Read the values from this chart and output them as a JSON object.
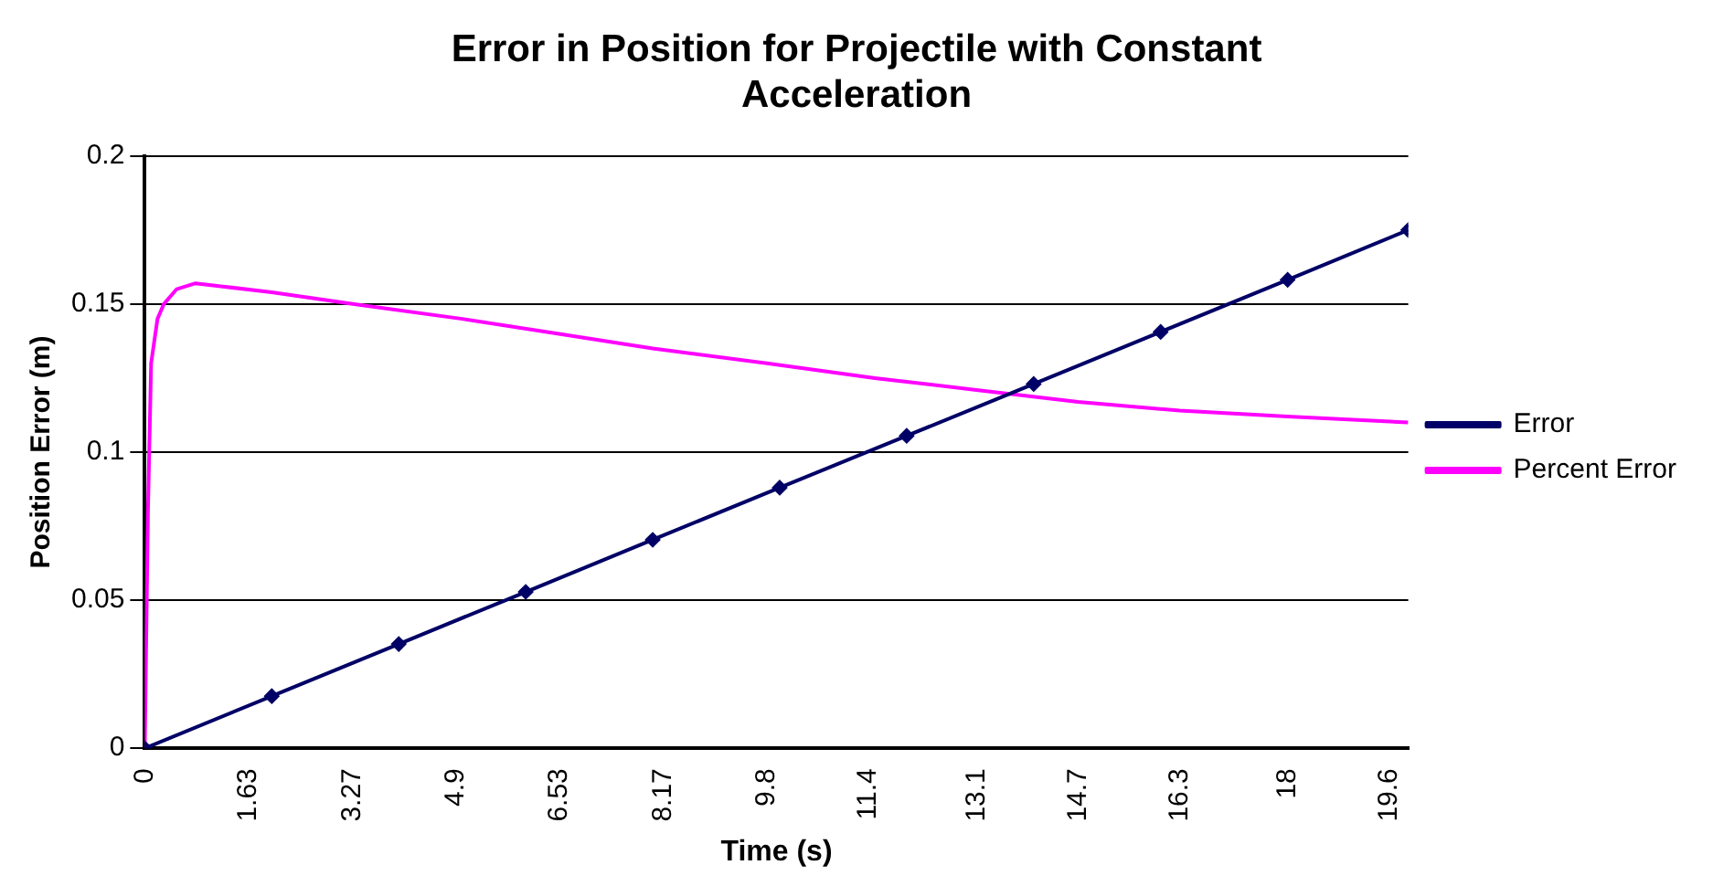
{
  "chart_data": {
    "type": "line",
    "title": "Error in Position for Projectile with Constant Acceleration",
    "xlabel": "Time (s)",
    "ylabel": "Position Error (m)",
    "xlim": [
      0,
      19.9
    ],
    "xticks": [
      0,
      1.63,
      3.27,
      4.9,
      6.53,
      8.17,
      9.8,
      11.4,
      13.1,
      14.7,
      16.3,
      18,
      19.6
    ],
    "ylim": [
      0,
      0.2
    ],
    "yticks": [
      0,
      0.05,
      0.1,
      0.15,
      0.2
    ],
    "grid": "y",
    "legend": "right",
    "series": [
      {
        "name": "Error",
        "color": "#000066",
        "marker": "diamond",
        "x": [
          0,
          2,
          4,
          6,
          8,
          10,
          12,
          14,
          16,
          18,
          19.9
        ],
        "values": [
          0,
          0.0176,
          0.0352,
          0.0528,
          0.0704,
          0.088,
          0.1055,
          0.123,
          0.1406,
          0.1582,
          0.175
        ]
      },
      {
        "name": "Percent Error",
        "color": "#ff00ff",
        "marker": "none",
        "x": [
          0,
          0.05,
          0.1,
          0.2,
          0.3,
          0.5,
          0.8,
          1.2,
          2,
          3.3,
          5,
          6.5,
          8,
          9.8,
          11.5,
          13.1,
          14.7,
          16.3,
          18,
          19.9
        ],
        "values": [
          0,
          0.08,
          0.13,
          0.145,
          0.15,
          0.155,
          0.157,
          0.156,
          0.154,
          0.15,
          0.145,
          0.14,
          0.135,
          0.13,
          0.125,
          0.121,
          0.117,
          0.114,
          0.112,
          0.11
        ]
      }
    ]
  }
}
